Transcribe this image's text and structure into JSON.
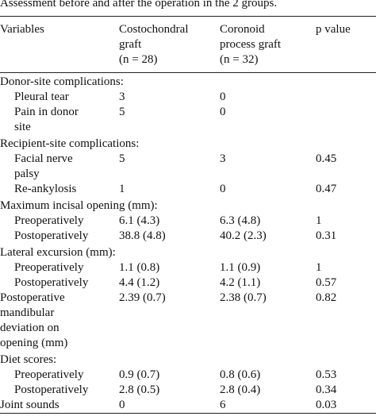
{
  "caption": "Assessment before and after the operation in the 2 groups.",
  "header": [
    [
      "Variables"
    ],
    [
      "Costochondral",
      "graft",
      "(n = 28)"
    ],
    [
      "Coronoid",
      "process graft",
      "(n = 32)"
    ],
    [
      "p value"
    ]
  ],
  "sections": [
    {
      "title": "Donor-site complications:",
      "rows": [
        [
          "Pleural tear",
          "3",
          "0"
        ],
        [
          "Pain in donor site",
          "5",
          "0"
        ]
      ]
    },
    {
      "title": "Recipient-site complications:",
      "rows": [
        [
          "Facial nerve palsy",
          "5",
          "3",
          "0.45"
        ],
        [
          "Re-ankylosis",
          "1",
          "0",
          "0.47"
        ]
      ]
    },
    {
      "title": "Maximum incisal opening (mm):",
      "rows": [
        [
          "Preoperatively",
          "6.1 (4.3)",
          "6.3 (4.8)",
          "1"
        ],
        [
          "Postoperatively",
          "38.8 (4.8)",
          "40.2 (2.3)",
          "0.31"
        ]
      ]
    },
    {
      "title": "Lateral excursion (mm):",
      "rows": [
        [
          "Preoperatively",
          "1.1 (0.8)",
          "1.1 (0.9)",
          "1"
        ],
        [
          "Postoperatively",
          "4.4 (1.2)",
          "4.2 (1.1)",
          "0.57"
        ]
      ]
    },
    {
      "rows": [
        [
          "Postoperative mandibular deviation on opening (mm)",
          "2.39 (0.7)",
          "2.38 (0.7)",
          "0.82"
        ]
      ]
    },
    {
      "title": "Diet scores:",
      "rows": [
        [
          "Preoperatively",
          "0.9 (0.7)",
          "0.8 (0.6)",
          "0.53"
        ],
        [
          "Postoperatively",
          "2.8 (0.5)",
          "2.8 (0.4)",
          "0.34"
        ]
      ]
    },
    {
      "rows": [
        [
          "Joint sounds",
          "0",
          "6",
          "0.03"
        ]
      ]
    }
  ]
}
